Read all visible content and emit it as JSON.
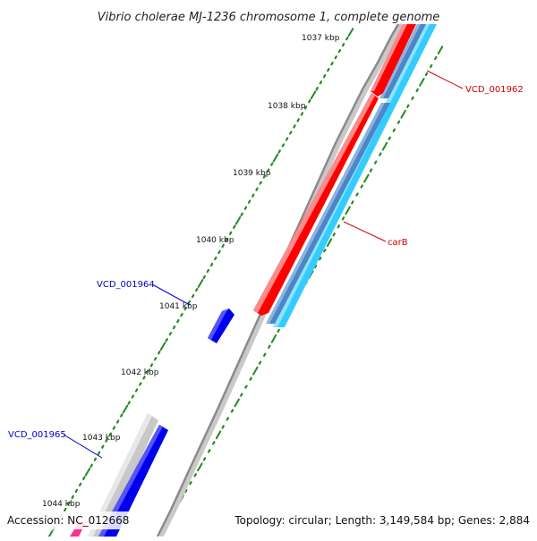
{
  "title": "Vibrio cholerae MJ-1236 chromosome 1, complete genome",
  "footer": {
    "accession": "Accession: NC_012668",
    "summary": "Topology: circular; Length: 3,149,584 bp; Genes: 2,884"
  },
  "ticks": [
    "1037 kbp",
    "1038 kbp",
    "1039 kbp",
    "1040 kbp",
    "1041 kbp",
    "1042 kbp",
    "1043 kbp",
    "1044 kbp"
  ],
  "gene_labels": {
    "vcd_001962": "VCD_001962",
    "carb": "carB",
    "vcd_001964": "VCD_001964",
    "vcd_001965": "VCD_001965"
  },
  "colors": {
    "forward_gene": "#ff0000",
    "reverse_gene": "#0000ee",
    "blue_track": "#4a86c8",
    "cyan_track": "#33ccff",
    "grey_track": "#c8c8c8",
    "backbone": "#888888",
    "tick": "#228b22",
    "label_red": "#cc0000",
    "label_blue": "#0000cc",
    "pink_gene": "#ff2f92"
  }
}
